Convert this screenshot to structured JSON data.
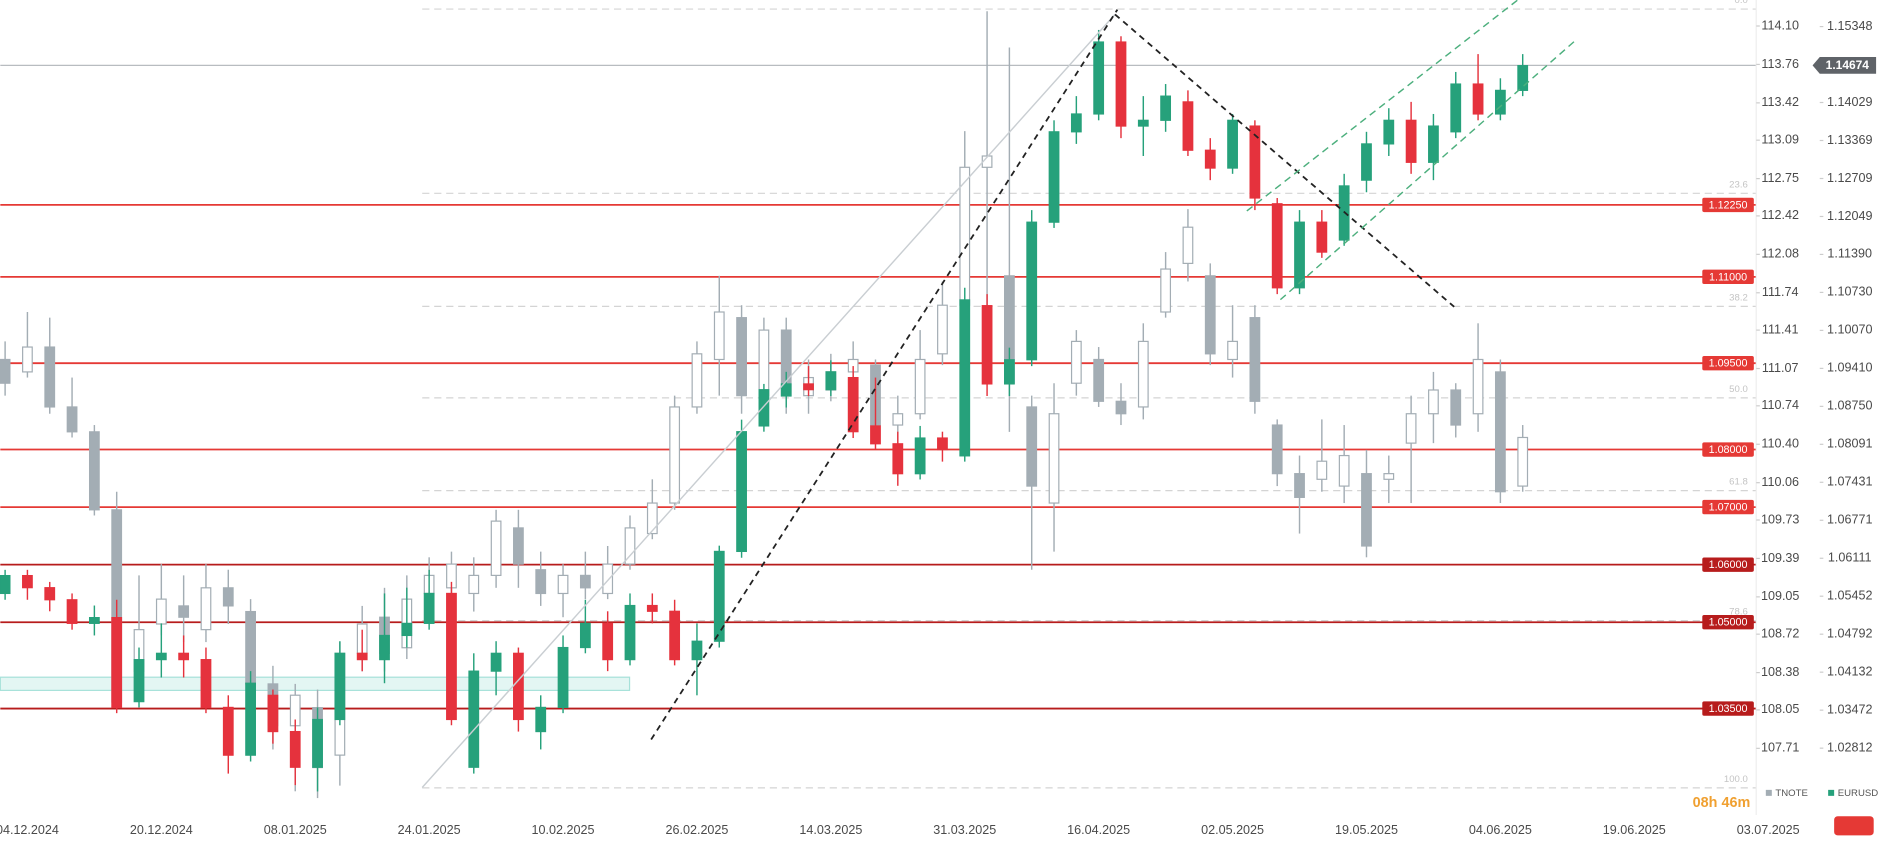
{
  "chart_data": {
    "type": "candlestick",
    "categories": [
      null,
      "04.12.2024",
      null,
      null,
      null,
      null,
      null,
      "20.12.2024",
      null,
      null,
      null,
      null,
      null,
      "08.01.2025",
      null,
      null,
      null,
      null,
      null,
      "24.01.2025",
      null,
      null,
      null,
      null,
      null,
      "10.02.2025",
      null,
      null,
      null,
      null,
      null,
      "26.02.2025",
      null,
      null,
      null,
      null,
      null,
      "14.03.2025",
      null,
      null,
      null,
      null,
      null,
      "31.03.2025",
      null,
      null,
      null,
      null,
      null,
      "16.04.2025",
      null,
      null,
      null,
      null,
      null,
      "02.05.2025",
      null,
      null,
      null,
      null,
      null,
      "19.05.2025",
      null,
      null,
      null,
      null,
      null,
      "04.06.2025",
      null,
      null,
      null,
      null,
      null,
      "19.06.2025",
      null,
      null,
      null,
      null,
      null,
      "03.07.2025",
      null
    ],
    "series": [
      {
        "name": "TNOTE",
        "color": "#a3adb4",
        "up_color": "#ffffff",
        "down_color": "#a3adb4",
        "outline_color": "#a3adb4",
        "axis": "y",
        "values": [
          [
            111.15,
            111.31,
            110.83,
            110.94
          ],
          [
            111.04,
            111.57,
            110.99,
            111.26
          ],
          [
            111.26,
            111.52,
            110.67,
            110.73
          ],
          [
            110.73,
            110.99,
            110.46,
            110.51
          ],
          [
            110.51,
            110.57,
            109.77,
            109.82
          ],
          [
            109.82,
            109.98,
            108.07,
            108.12
          ],
          [
            108.39,
            109.24,
            108.23,
            108.76
          ],
          [
            108.81,
            109.34,
            108.71,
            109.03
          ],
          [
            108.97,
            109.24,
            108.65,
            108.87
          ],
          [
            108.76,
            109.34,
            108.65,
            109.13
          ],
          [
            109.13,
            109.29,
            108.81,
            108.97
          ],
          [
            108.92,
            109.03,
            108.07,
            108.28
          ],
          [
            108.28,
            108.44,
            107.7,
            107.91
          ],
          [
            107.91,
            108.28,
            107.33,
            108.18
          ],
          [
            108.07,
            108.23,
            107.27,
            107.54
          ],
          [
            107.65,
            108.65,
            107.38,
            108.55
          ],
          [
            108.55,
            108.97,
            108.39,
            108.81
          ],
          [
            108.87,
            109.13,
            108.39,
            108.55
          ],
          [
            108.6,
            109.24,
            108.5,
            109.03
          ],
          [
            109.08,
            109.4,
            108.97,
            109.24
          ],
          [
            109.13,
            109.45,
            109.03,
            109.34
          ],
          [
            109.08,
            109.4,
            108.92,
            109.24
          ],
          [
            109.24,
            109.82,
            109.13,
            109.72
          ],
          [
            109.66,
            109.82,
            109.13,
            109.34
          ],
          [
            109.29,
            109.45,
            108.97,
            109.08
          ],
          [
            109.08,
            109.34,
            108.87,
            109.24
          ],
          [
            109.24,
            109.45,
            109.03,
            109.13
          ],
          [
            109.08,
            109.5,
            109.03,
            109.34
          ],
          [
            109.34,
            109.77,
            109.29,
            109.66
          ],
          [
            109.61,
            110.09,
            109.56,
            109.88
          ],
          [
            109.88,
            110.83,
            109.82,
            110.73
          ],
          [
            110.73,
            111.31,
            110.67,
            111.2
          ],
          [
            111.15,
            111.89,
            110.83,
            111.57
          ],
          [
            111.52,
            111.63,
            110.67,
            110.83
          ],
          [
            110.83,
            111.52,
            110.73,
            111.41
          ],
          [
            111.41,
            111.52,
            110.67,
            110.83
          ],
          [
            110.83,
            111.15,
            110.67,
            110.99
          ],
          [
            110.88,
            111.2,
            110.78,
            111.04
          ],
          [
            111.04,
            111.31,
            110.88,
            111.15
          ],
          [
            111.1,
            111.15,
            110.46,
            110.57
          ],
          [
            110.57,
            110.83,
            110.41,
            110.67
          ],
          [
            110.67,
            111.41,
            110.62,
            111.15
          ],
          [
            111.2,
            111.84,
            111.1,
            111.63
          ],
          [
            111.63,
            113.17,
            111.47,
            112.85
          ],
          [
            112.85,
            114.23,
            111.47,
            112.95
          ],
          [
            111.89,
            113.91,
            110.51,
            110.94
          ],
          [
            110.73,
            110.83,
            109.29,
            110.03
          ],
          [
            109.88,
            110.94,
            109.45,
            110.67
          ],
          [
            110.94,
            111.41,
            110.83,
            111.31
          ],
          [
            111.15,
            111.26,
            110.73,
            110.78
          ],
          [
            110.78,
            110.94,
            110.57,
            110.67
          ],
          [
            110.73,
            111.47,
            110.62,
            111.31
          ],
          [
            111.57,
            112.1,
            111.52,
            111.95
          ],
          [
            112.0,
            112.48,
            111.84,
            112.32
          ],
          [
            111.89,
            112.0,
            111.1,
            111.2
          ],
          [
            111.15,
            111.63,
            110.99,
            111.31
          ],
          [
            111.52,
            111.63,
            110.67,
            110.78
          ],
          [
            110.57,
            110.62,
            110.03,
            110.14
          ],
          [
            110.14,
            110.3,
            109.61,
            109.93
          ],
          [
            110.09,
            110.62,
            109.98,
            110.25
          ],
          [
            110.03,
            110.57,
            109.88,
            110.3
          ],
          [
            110.14,
            110.35,
            109.4,
            109.5
          ],
          [
            110.09,
            110.3,
            109.88,
            110.14
          ],
          [
            110.41,
            110.83,
            109.88,
            110.67
          ],
          [
            110.67,
            111.04,
            110.41,
            110.88
          ],
          [
            110.88,
            110.94,
            110.46,
            110.57
          ],
          [
            110.67,
            111.47,
            110.51,
            111.15
          ],
          [
            111.04,
            111.15,
            109.88,
            109.98
          ],
          [
            110.03,
            110.57,
            109.98,
            110.46
          ],
          null,
          null,
          null,
          null,
          null,
          null,
          null,
          null,
          null,
          null,
          null,
          null
        ]
      },
      {
        "name": "EURUSD",
        "color": "#26a17b",
        "up_color": "#26a17b",
        "down_color": "#e5323d",
        "axis": "y2",
        "values": [
          [
            1.055,
            1.0591,
            1.0539,
            1.0581
          ],
          [
            1.0581,
            1.0591,
            1.0539,
            1.056
          ],
          [
            1.056,
            1.057,
            1.0519,
            1.0539
          ],
          [
            1.0539,
            1.055,
            1.0487,
            1.0498
          ],
          [
            1.0498,
            1.0529,
            1.0477,
            1.0508
          ],
          [
            1.0508,
            1.0539,
            1.0342,
            1.0352
          ],
          [
            1.0362,
            1.0456,
            1.0352,
            1.0435
          ],
          [
            1.0435,
            1.0498,
            1.0404,
            1.0446
          ],
          [
            1.0446,
            1.0477,
            1.0404,
            1.0435
          ],
          [
            1.0435,
            1.0456,
            1.0342,
            1.0352
          ],
          [
            1.0352,
            1.0373,
            1.0237,
            1.0269
          ],
          [
            1.0269,
            1.0415,
            1.0258,
            1.0394
          ],
          [
            1.0373,
            1.0383,
            1.0289,
            1.031
          ],
          [
            1.031,
            1.0331,
            1.0217,
            1.0248
          ],
          [
            1.0248,
            1.0352,
            1.0206,
            1.0331
          ],
          [
            1.0331,
            1.0467,
            1.0321,
            1.0446
          ],
          [
            1.0446,
            1.0487,
            1.0415,
            1.0435
          ],
          [
            1.0435,
            1.055,
            1.0394,
            1.0477
          ],
          [
            1.0477,
            1.056,
            1.0456,
            1.0498
          ],
          [
            1.0498,
            1.0591,
            1.0487,
            1.055
          ],
          [
            1.055,
            1.057,
            1.0321,
            1.0331
          ],
          [
            1.0248,
            1.0446,
            1.0237,
            1.0415
          ],
          [
            1.0415,
            1.0467,
            1.0373,
            1.0446
          ],
          [
            1.0446,
            1.0456,
            1.031,
            1.0331
          ],
          [
            1.031,
            1.0373,
            1.0279,
            1.0352
          ],
          [
            1.0352,
            1.0477,
            1.0342,
            1.0456
          ],
          [
            1.0456,
            1.0539,
            1.0446,
            1.0498
          ],
          [
            1.0498,
            1.0519,
            1.0415,
            1.0435
          ],
          [
            1.0435,
            1.055,
            1.0425,
            1.0529
          ],
          [
            1.0529,
            1.055,
            1.0498,
            1.0519
          ],
          [
            1.0519,
            1.0539,
            1.0425,
            1.0435
          ],
          [
            1.0435,
            1.0498,
            1.0373,
            1.0467
          ],
          [
            1.0467,
            1.0633,
            1.0456,
            1.0623
          ],
          [
            1.0623,
            1.0852,
            1.0612,
            1.0831
          ],
          [
            1.0841,
            1.0914,
            1.0831,
            1.0904
          ],
          [
            1.0893,
            1.0935,
            1.0873,
            1.0914
          ],
          [
            1.0914,
            1.0945,
            1.0893,
            1.0904
          ],
          [
            1.0904,
            1.0955,
            1.0893,
            1.0935
          ],
          [
            1.0925,
            1.0945,
            1.082,
            1.0831
          ],
          [
            1.0841,
            1.0925,
            1.08,
            1.081
          ],
          [
            1.081,
            1.0831,
            1.0737,
            1.0758
          ],
          [
            1.0758,
            1.0841,
            1.0748,
            1.082
          ],
          [
            1.082,
            1.0831,
            1.0779,
            1.08
          ],
          [
            1.0789,
            1.1081,
            1.0779,
            1.106
          ],
          [
            1.105,
            1.107,
            1.0893,
            1.0914
          ],
          [
            1.0914,
            1.0977,
            1.0893,
            1.0956
          ],
          [
            1.0956,
            1.1216,
            1.0945,
            1.1195
          ],
          [
            1.1195,
            1.1372,
            1.1185,
            1.1352
          ],
          [
            1.1352,
            1.1414,
            1.1331,
            1.1383
          ],
          [
            1.1383,
            1.1529,
            1.1372,
            1.1508
          ],
          [
            1.1508,
            1.1518,
            1.1341,
            1.1362
          ],
          [
            1.1362,
            1.1414,
            1.131,
            1.1372
          ],
          [
            1.1372,
            1.1435,
            1.1352,
            1.1414
          ],
          [
            1.1404,
            1.1424,
            1.131,
            1.132
          ],
          [
            1.132,
            1.1341,
            1.1268,
            1.1289
          ],
          [
            1.1289,
            1.1383,
            1.1279,
            1.1372
          ],
          [
            1.1362,
            1.1372,
            1.1216,
            1.1237
          ],
          [
            1.1227,
            1.1237,
            1.107,
            1.1081
          ],
          [
            1.1081,
            1.1216,
            1.107,
            1.1195
          ],
          [
            1.1195,
            1.1216,
            1.1133,
            1.1143
          ],
          [
            1.1164,
            1.1279,
            1.1154,
            1.1258
          ],
          [
            1.1268,
            1.1352,
            1.1247,
            1.1331
          ],
          [
            1.1331,
            1.1393,
            1.131,
            1.1372
          ],
          [
            1.1372,
            1.1404,
            1.1279,
            1.1299
          ],
          [
            1.1299,
            1.1383,
            1.1268,
            1.1362
          ],
          [
            1.1352,
            1.1456,
            1.1341,
            1.1435
          ],
          [
            1.1435,
            1.1487,
            1.1372,
            1.1383
          ],
          [
            1.1383,
            1.1445,
            1.1372,
            1.1424
          ],
          [
            1.1424,
            1.1487,
            1.1414,
            1.1467
          ],
          null,
          null,
          null,
          null,
          null,
          null,
          null,
          null,
          null,
          null,
          null,
          null
        ]
      }
    ],
    "ylim": [
      107.12,
      114.33
    ],
    "yticks": [
      {
        "value": 114.1,
        "label": "114.10"
      },
      113.76,
      113.42,
      113.09,
      112.75,
      112.42,
      112.08,
      111.74,
      111.41,
      111.07,
      110.74,
      {
        "value": 110.4,
        "label": "110.40"
      },
      110.06,
      109.73,
      109.39,
      109.05,
      108.72,
      108.38,
      108.05,
      107.71
    ],
    "y2lim": [
      1.0165,
      1.1581
    ],
    "y2ticks": [
      1.15348,
      1.14029,
      1.13369,
      1.12709,
      1.12049,
      {
        "value": 1.1139,
        "label": "1.11390"
      },
      {
        "value": 1.1073,
        "label": "1.10730"
      },
      {
        "value": 1.1007,
        "label": "1.10070"
      },
      {
        "value": 1.0941,
        "label": "1.09410"
      },
      {
        "value": 1.0875,
        "label": "1.08750"
      },
      1.08091,
      1.07431,
      1.06771,
      1.06111,
      1.05452,
      1.04792,
      1.04132,
      1.03472,
      1.02812
    ],
    "levels": [
      {
        "value": 1.1225,
        "label": "1.12250",
        "color": "#e53935"
      },
      {
        "value": 1.11,
        "label": "1.11000",
        "color": "#e53935"
      },
      {
        "value": 1.095,
        "label": "1.09500",
        "color": "#e53935"
      },
      {
        "value": 1.08,
        "label": "1.08000",
        "color": "#e53935"
      },
      {
        "value": 1.07,
        "label": "1.07000",
        "color": "#e53935"
      },
      {
        "value": 1.06,
        "label": "1.06000",
        "color": "#b71c1c"
      },
      {
        "value": 1.05,
        "label": "1.05000",
        "color": "#b71c1c"
      },
      {
        "value": 1.035,
        "label": "1.03500",
        "color": "#b71c1c"
      }
    ],
    "fib_levels": [
      {
        "value": 114.25,
        "label": "0.0"
      },
      {
        "value": 112.62,
        "label": "23.6"
      },
      {
        "value": 111.62,
        "label": "38.2"
      },
      {
        "value": 110.81,
        "label": "50.0"
      },
      {
        "value": 109.99,
        "label": "61.8"
      },
      {
        "value": 108.84,
        "label": "78.6"
      },
      {
        "value": 107.36,
        "label": "100.0"
      }
    ],
    "last_price": 1.14674,
    "countdown": "08h 46m"
  }
}
